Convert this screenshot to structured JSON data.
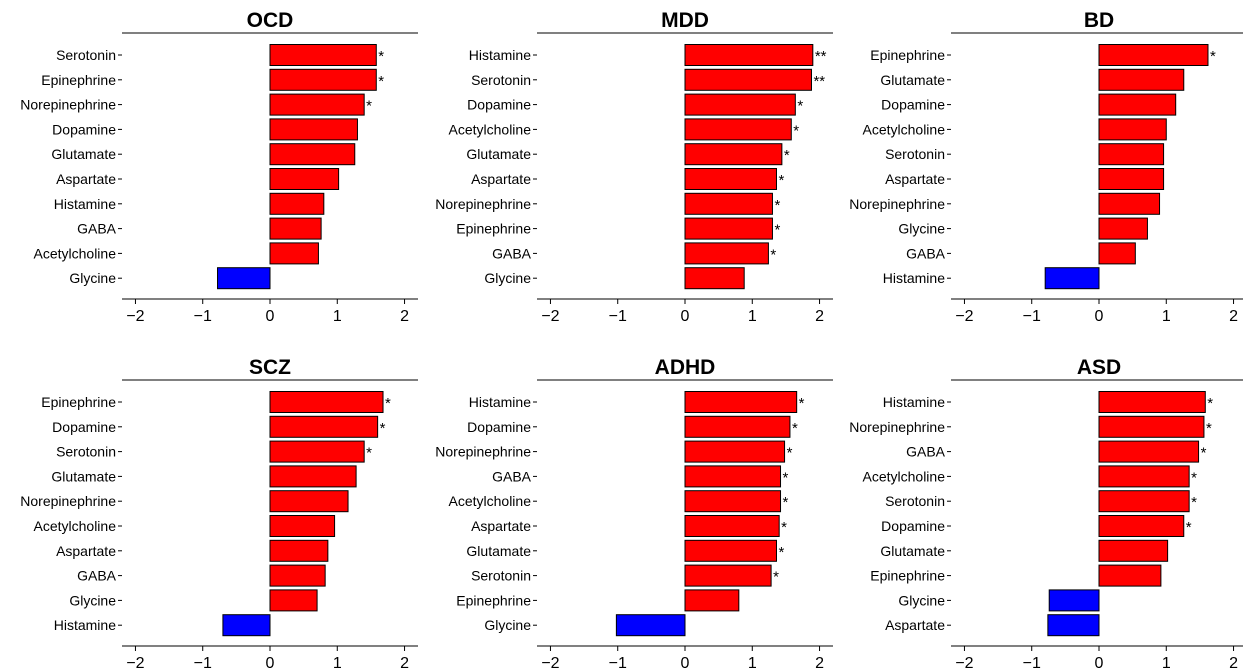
{
  "colors": {
    "positive": "#ff0000",
    "negative": "#0000ff",
    "edge": "#000000",
    "axis": "#000000"
  },
  "chart_data": [
    {
      "type": "bar",
      "orientation": "horizontal",
      "title": "OCD",
      "xlim": [
        -2.2,
        2.2
      ],
      "xticks": [
        "−2",
        "−1",
        "0",
        "1",
        "2"
      ],
      "grid": false,
      "categories": [
        "Serotonin",
        "Epinephrine",
        "Norepinephrine",
        "Dopamine",
        "Glutamate",
        "Aspartate",
        "Histamine",
        "GABA",
        "Acetylcholine",
        "Glycine"
      ],
      "values": [
        1.58,
        1.58,
        1.4,
        1.3,
        1.26,
        1.02,
        0.8,
        0.76,
        0.72,
        -0.78
      ],
      "significance": [
        "*",
        "*",
        "*",
        "",
        "",
        "",
        "",
        "",
        "",
        ""
      ]
    },
    {
      "type": "bar",
      "orientation": "horizontal",
      "title": "MDD",
      "xlim": [
        -2.2,
        2.2
      ],
      "xticks": [
        "−2",
        "−1",
        "0",
        "1",
        "2"
      ],
      "grid": false,
      "categories": [
        "Histamine",
        "Serotonin",
        "Dopamine",
        "Acetylcholine",
        "Glutamate",
        "Aspartate",
        "Norepinephrine",
        "Epinephrine",
        "GABA",
        "Glycine"
      ],
      "values": [
        1.9,
        1.88,
        1.64,
        1.58,
        1.44,
        1.36,
        1.3,
        1.3,
        1.24,
        0.88
      ],
      "significance": [
        "**",
        "**",
        "*",
        "*",
        "*",
        "*",
        "*",
        "*",
        "*",
        ""
      ]
    },
    {
      "type": "bar",
      "orientation": "horizontal",
      "title": "BD",
      "xlim": [
        -2.2,
        2.2
      ],
      "xticks": [
        "−2",
        "−1",
        "0",
        "1",
        "2"
      ],
      "grid": false,
      "categories": [
        "Epinephrine",
        "Glutamate",
        "Dopamine",
        "Acetylcholine",
        "Serotonin",
        "Aspartate",
        "Norepinephrine",
        "Glycine",
        "GABA",
        "Histamine"
      ],
      "values": [
        1.62,
        1.26,
        1.14,
        1.0,
        0.96,
        0.96,
        0.9,
        0.72,
        0.54,
        -0.8
      ],
      "significance": [
        "*",
        "",
        "",
        "",
        "",
        "",
        "",
        "",
        "",
        ""
      ]
    },
    {
      "type": "bar",
      "orientation": "horizontal",
      "title": "SCZ",
      "xlim": [
        -2.2,
        2.2
      ],
      "xticks": [
        "−2",
        "−1",
        "0",
        "1",
        "2"
      ],
      "grid": false,
      "categories": [
        "Epinephrine",
        "Dopamine",
        "Serotonin",
        "Glutamate",
        "Norepinephrine",
        "Acetylcholine",
        "Aspartate",
        "GABA",
        "Glycine",
        "Histamine"
      ],
      "values": [
        1.68,
        1.6,
        1.4,
        1.28,
        1.16,
        0.96,
        0.86,
        0.82,
        0.7,
        -0.7
      ],
      "significance": [
        "*",
        "*",
        "*",
        "",
        "",
        "",
        "",
        "",
        "",
        ""
      ]
    },
    {
      "type": "bar",
      "orientation": "horizontal",
      "title": "ADHD",
      "xlim": [
        -2.2,
        2.2
      ],
      "xticks": [
        "−2",
        "−1",
        "0",
        "1",
        "2"
      ],
      "grid": false,
      "categories": [
        "Histamine",
        "Dopamine",
        "Norepinephrine",
        "GABA",
        "Acetylcholine",
        "Aspartate",
        "Glutamate",
        "Serotonin",
        "Epinephrine",
        "Glycine"
      ],
      "values": [
        1.66,
        1.56,
        1.48,
        1.42,
        1.42,
        1.4,
        1.36,
        1.28,
        0.8,
        -1.02
      ],
      "significance": [
        "*",
        "*",
        "*",
        "*",
        "*",
        "*",
        "*",
        "*",
        "",
        ""
      ]
    },
    {
      "type": "bar",
      "orientation": "horizontal",
      "title": "ASD",
      "xlim": [
        -2.2,
        2.2
      ],
      "xticks": [
        "−2",
        "−1",
        "0",
        "1",
        "2"
      ],
      "grid": false,
      "categories": [
        "Histamine",
        "Norepinephrine",
        "GABA",
        "Acetylcholine",
        "Serotonin",
        "Dopamine",
        "Glutamate",
        "Epinephrine",
        "Glycine",
        "Aspartate"
      ],
      "values": [
        1.58,
        1.56,
        1.48,
        1.34,
        1.34,
        1.26,
        1.02,
        0.92,
        -0.74,
        -0.76
      ],
      "significance": [
        "*",
        "*",
        "*",
        "*",
        "*",
        "*",
        "",
        "",
        "",
        ""
      ]
    }
  ]
}
